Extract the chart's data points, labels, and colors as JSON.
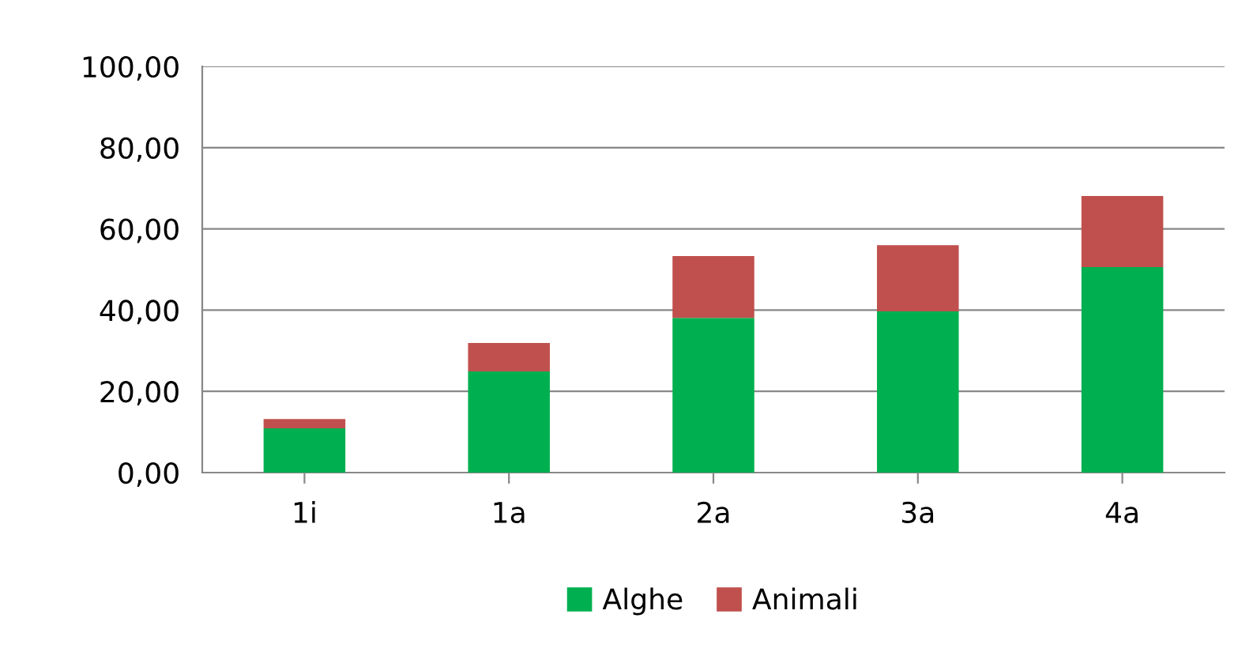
{
  "chart_data": {
    "type": "bar",
    "stacked": true,
    "categories": [
      "1i",
      "1a",
      "2a",
      "3a",
      "4a"
    ],
    "series": [
      {
        "name": "Alghe",
        "color": "#00b050",
        "values": [
          10.9,
          24.9,
          38.1,
          39.7,
          50.6
        ]
      },
      {
        "name": "Animali",
        "color": "#c0504d",
        "values": [
          2.3,
          7.0,
          15.2,
          16.3,
          17.5
        ]
      }
    ],
    "ylim": [
      0,
      100
    ],
    "yticks": [
      {
        "value": 0,
        "label": "0,00"
      },
      {
        "value": 20,
        "label": "20,00"
      },
      {
        "value": 40,
        "label": "40,00"
      },
      {
        "value": 60,
        "label": "60,00"
      },
      {
        "value": 80,
        "label": "80,00"
      },
      {
        "value": 100,
        "label": "100,00"
      }
    ],
    "grid": "y",
    "legend": "bottom"
  }
}
